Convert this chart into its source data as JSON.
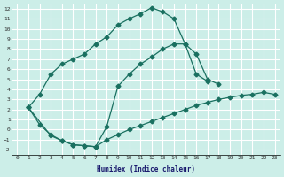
{
  "background_color": "#cceee8",
  "line_color": "#1a7060",
  "grid_color": "#ffffff",
  "xlabel": "Humidex (Indice chaleur)",
  "xlim": [
    -0.5,
    23.5
  ],
  "ylim": [
    -2.5,
    12.5
  ],
  "xticks": [
    0,
    1,
    2,
    3,
    4,
    5,
    6,
    7,
    8,
    9,
    10,
    11,
    12,
    13,
    14,
    15,
    16,
    17,
    18,
    19,
    20,
    21,
    22,
    23
  ],
  "yticks": [
    -2,
    -1,
    0,
    1,
    2,
    3,
    4,
    5,
    6,
    7,
    8,
    9,
    10,
    11,
    12
  ],
  "line1_x": [
    1,
    2,
    3,
    4,
    5,
    6,
    7,
    8,
    9,
    10,
    11,
    12,
    13,
    14,
    15,
    16,
    17
  ],
  "line1_y": [
    2.2,
    3.5,
    5.5,
    6.5,
    7.0,
    7.5,
    8.5,
    9.2,
    10.4,
    11.0,
    11.5,
    12.1,
    11.7,
    11.0,
    8.5,
    5.5,
    4.8
  ],
  "line2_x": [
    1,
    3,
    4,
    5,
    6,
    7,
    8,
    9,
    10,
    11,
    12,
    13,
    14,
    15,
    16,
    17,
    18
  ],
  "line2_y": [
    2.2,
    -0.6,
    -1.1,
    -1.5,
    -1.6,
    -1.7,
    0.3,
    4.3,
    5.5,
    6.5,
    7.2,
    8.0,
    8.5,
    8.5,
    7.5,
    5.0,
    4.5
  ],
  "line3_x": [
    1,
    2,
    3,
    4,
    5,
    6,
    7,
    8,
    9,
    10,
    11,
    12,
    13,
    14,
    15,
    16,
    17,
    18,
    19,
    20,
    21,
    22,
    23
  ],
  "line3_y": [
    2.2,
    0.5,
    -0.5,
    -1.1,
    -1.5,
    -1.6,
    -1.7,
    -1.0,
    -0.5,
    0.0,
    0.4,
    0.8,
    1.2,
    1.6,
    2.0,
    2.4,
    2.7,
    3.0,
    3.2,
    3.4,
    3.5,
    3.7,
    3.5
  ]
}
